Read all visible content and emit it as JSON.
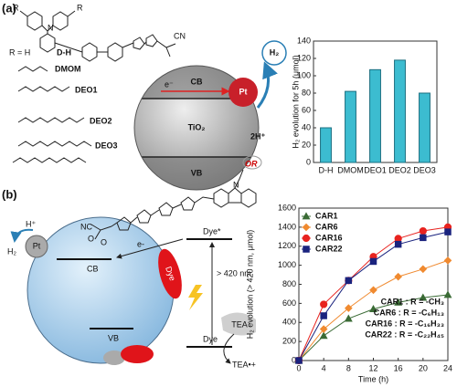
{
  "figure_labels": [
    "(a)",
    "(b)"
  ],
  "panel_a": {
    "n": "N",
    "r_label": "R",
    "r_equals": "R = H",
    "substituents": [
      "D-H",
      "DMOM",
      "DEO1",
      "DEO2",
      "DEO3"
    ],
    "cn": "CN",
    "electron": "e⁻",
    "cb": "CB",
    "pt": "Pt",
    "semiconductor": "TiO₂",
    "vb": "VB",
    "h2": "H₂",
    "protons": "2H⁺"
  },
  "panel_b": {
    "or": "OR",
    "n": "N",
    "nc": "NC",
    "o_labels": [
      "O",
      "O"
    ],
    "proton": "H⁺",
    "h2": "H₂",
    "pt": "Pt",
    "electron": "e-",
    "cb": "CB",
    "vb": "VB",
    "dye_on_particle": "Dye",
    "dye_excited": "Dye*",
    "dye_ground": "Dye",
    "wavelength": "> 420 nm",
    "donor": "TEA",
    "donor_oxidized": "TEA•+"
  },
  "chart_data": [
    {
      "type": "bar",
      "ylabel": "H₂ evolution for 5h (μmol)",
      "categories": [
        "D-H",
        "DMOM",
        "DEO1",
        "DEO2",
        "DEO3"
      ],
      "values": [
        40,
        82,
        107,
        118,
        80
      ],
      "color": "#3cbcd0",
      "ylim": [
        0,
        140
      ],
      "yticks": [
        0,
        20,
        40,
        60,
        80,
        100,
        120,
        140
      ]
    },
    {
      "type": "line",
      "xlabel": "Time (h)",
      "ylabel": "H₂ evolution (> 420 nm, μmol)",
      "x": [
        0,
        4,
        8,
        12,
        16,
        20,
        24
      ],
      "xlim": [
        0,
        24
      ],
      "xticks": [
        0,
        4,
        8,
        12,
        16,
        20,
        24
      ],
      "ylim": [
        0,
        1600
      ],
      "yticks": [
        0,
        200,
        400,
        600,
        800,
        1000,
        1200,
        1400,
        1600
      ],
      "legend": "upper left",
      "series": [
        {
          "name": "CAR1",
          "color": "#3a6b35",
          "marker": "triangle",
          "values": [
            0,
            260,
            440,
            540,
            610,
            660,
            690
          ]
        },
        {
          "name": "CAR6",
          "color": "#f08a30",
          "marker": "diamond",
          "values": [
            0,
            330,
            550,
            740,
            880,
            960,
            1050
          ]
        },
        {
          "name": "CAR16",
          "color": "#e8231f",
          "marker": "circle",
          "values": [
            0,
            590,
            840,
            1090,
            1280,
            1360,
            1400
          ]
        },
        {
          "name": "CAR22",
          "color": "#1a237e",
          "marker": "square",
          "values": [
            0,
            470,
            840,
            1040,
            1220,
            1290,
            1350
          ]
        }
      ],
      "annotations": [
        "CAR1 : R = -CH₃",
        "CAR6 : R = -C₆H₁₃",
        "CAR16 : R = -C₁₆H₃₃",
        "CAR22 : R = -C₂₂H₄₅"
      ]
    }
  ]
}
